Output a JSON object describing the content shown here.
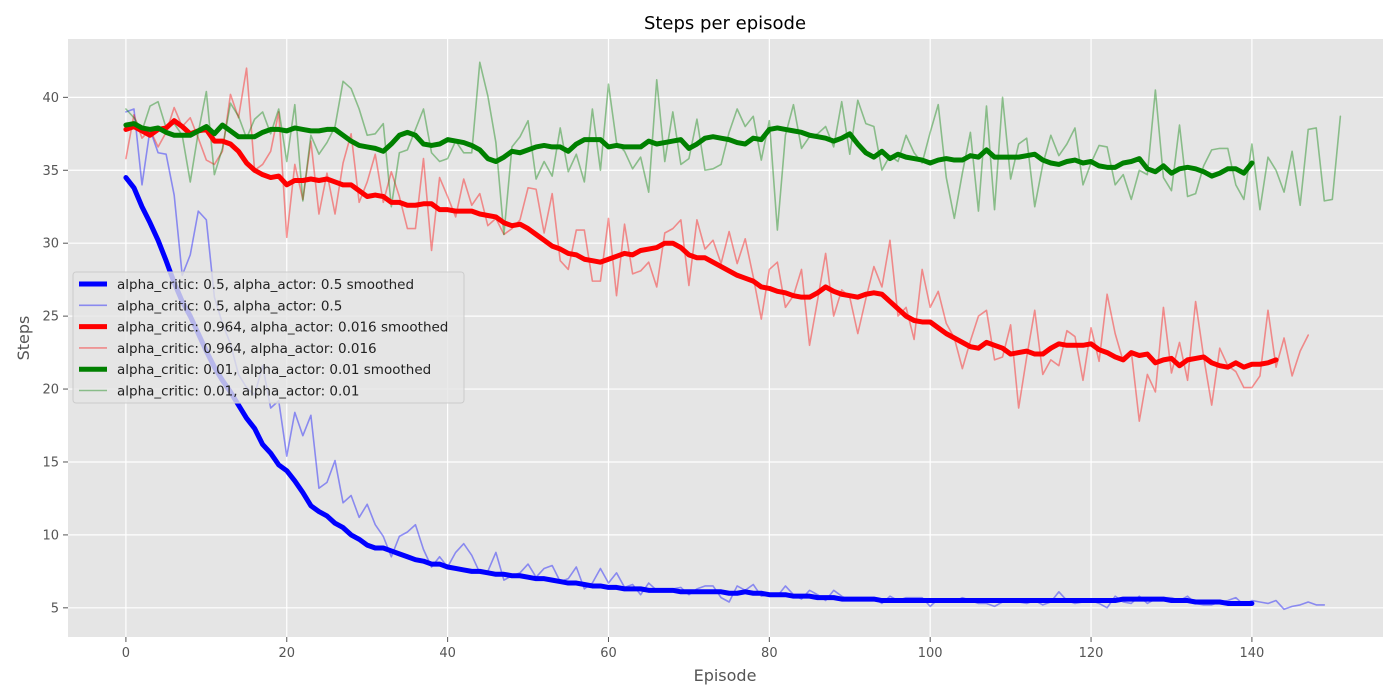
{
  "chart_data": {
    "type": "line",
    "title": "Steps per episode",
    "xlabel": "Episode",
    "ylabel": "Steps",
    "xlim": [
      -7.2,
      156.3
    ],
    "ylim": [
      3.0,
      44.0
    ],
    "xticks": [
      0,
      20,
      40,
      60,
      80,
      100,
      120,
      140
    ],
    "yticks": [
      5,
      10,
      15,
      20,
      25,
      30,
      35,
      40
    ],
    "grid": true,
    "legend_position": "center-left",
    "background": "#e5e5e5",
    "series": [
      {
        "name": "alpha_critic: 0.5, alpha_actor: 0.5 smoothed",
        "color": "#0000ff",
        "width": 5,
        "opacity": 1,
        "x_start": 0,
        "values": [
          34.5,
          33.8,
          32.5,
          31.4,
          30.2,
          28.8,
          27.3,
          26.0,
          25.0,
          23.8,
          22.6,
          21.5,
          20.6,
          19.8,
          18.9,
          18.0,
          17.3,
          16.2,
          15.6,
          14.8,
          14.4,
          13.7,
          12.9,
          12.0,
          11.6,
          11.3,
          10.8,
          10.5,
          10.0,
          9.7,
          9.3,
          9.1,
          9.1,
          8.9,
          8.7,
          8.5,
          8.3,
          8.2,
          8.0,
          8.0,
          7.8,
          7.7,
          7.6,
          7.5,
          7.5,
          7.4,
          7.3,
          7.3,
          7.2,
          7.2,
          7.1,
          7.0,
          7.0,
          6.9,
          6.8,
          6.7,
          6.7,
          6.6,
          6.5,
          6.5,
          6.4,
          6.4,
          6.3,
          6.3,
          6.3,
          6.2,
          6.2,
          6.2,
          6.2,
          6.1,
          6.1,
          6.1,
          6.1,
          6.1,
          6.1,
          6.0,
          6.0,
          6.1,
          6.0,
          6.0,
          5.9,
          5.9,
          5.9,
          5.8,
          5.8,
          5.8,
          5.7,
          5.7,
          5.7,
          5.6,
          5.6,
          5.6,
          5.6,
          5.6,
          5.5,
          5.5,
          5.5,
          5.5,
          5.5,
          5.5,
          5.5,
          5.5,
          5.5,
          5.5,
          5.5,
          5.5,
          5.5,
          5.5,
          5.5,
          5.5,
          5.5,
          5.5,
          5.5,
          5.5,
          5.5,
          5.5,
          5.5,
          5.5,
          5.5,
          5.5,
          5.5,
          5.5,
          5.5,
          5.5,
          5.6,
          5.6,
          5.6,
          5.6,
          5.6,
          5.6,
          5.5,
          5.5,
          5.5,
          5.4,
          5.4,
          5.4,
          5.4,
          5.3,
          5.3,
          5.3,
          5.3
        ]
      },
      {
        "name": "alpha_critic: 0.5, alpha_actor: 0.5",
        "color": "#0000ff",
        "width": 1.6,
        "opacity": 0.4,
        "x_start": 0,
        "values": [
          39.0,
          39.2,
          34.0,
          37.8,
          36.2,
          36.1,
          33.3,
          27.8,
          29.2,
          32.2,
          31.6,
          26.3,
          24.5,
          23.1,
          21.0,
          20.1,
          19.6,
          21.6,
          18.7,
          19.2,
          15.4,
          18.4,
          16.8,
          18.2,
          13.2,
          13.6,
          15.1,
          12.2,
          12.7,
          11.2,
          12.1,
          10.7,
          9.9,
          8.5,
          9.9,
          10.2,
          10.7,
          9.0,
          7.8,
          8.5,
          7.8,
          8.8,
          9.4,
          8.6,
          7.4,
          7.5,
          8.8,
          6.9,
          7.2,
          7.4,
          8.0,
          7.1,
          7.7,
          7.9,
          6.8,
          7.0,
          7.8,
          6.3,
          6.7,
          7.7,
          6.7,
          7.4,
          6.4,
          6.6,
          5.9,
          6.7,
          6.2,
          6.2,
          6.3,
          6.4,
          5.9,
          6.3,
          6.5,
          6.5,
          5.7,
          5.4,
          6.5,
          6.2,
          6.6,
          5.8,
          5.9,
          5.8,
          6.5,
          5.9,
          5.6,
          6.2,
          5.9,
          5.5,
          6.2,
          5.8,
          5.5,
          5.6,
          5.5,
          5.7,
          5.3,
          5.8,
          5.5,
          5.7,
          5.7,
          5.7,
          5.1,
          5.6,
          5.6,
          5.4,
          5.7,
          5.5,
          5.3,
          5.3,
          5.1,
          5.4,
          5.6,
          5.4,
          5.3,
          5.5,
          5.2,
          5.4,
          6.1,
          5.5,
          5.3,
          5.4,
          5.5,
          5.3,
          5.0,
          5.8,
          5.4,
          5.3,
          5.8,
          5.3,
          5.6,
          5.7,
          5.7,
          5.5,
          5.8,
          5.3,
          5.2,
          5.2,
          5.4,
          5.5,
          5.7,
          5.2,
          5.5,
          5.4,
          5.3,
          5.5,
          4.9,
          5.1,
          5.2,
          5.4,
          5.2,
          5.2
        ]
      },
      {
        "name": "alpha_critic: 0.964, alpha_actor: 0.016 smoothed",
        "color": "#ff0000",
        "width": 5,
        "opacity": 1,
        "x_start": 0,
        "values": [
          37.8,
          38.0,
          37.7,
          37.4,
          37.8,
          37.9,
          38.4,
          38.0,
          37.5,
          37.7,
          37.8,
          37.0,
          37.0,
          36.8,
          36.3,
          35.5,
          35.0,
          34.7,
          34.5,
          34.6,
          34.0,
          34.3,
          34.3,
          34.4,
          34.3,
          34.4,
          34.2,
          34.0,
          34.0,
          33.6,
          33.2,
          33.3,
          33.2,
          32.8,
          32.8,
          32.6,
          32.6,
          32.7,
          32.7,
          32.3,
          32.3,
          32.2,
          32.2,
          32.2,
          32.0,
          31.9,
          31.8,
          31.4,
          31.2,
          31.3,
          31.0,
          30.6,
          30.2,
          29.8,
          29.6,
          29.3,
          29.2,
          28.9,
          28.8,
          28.7,
          28.9,
          29.1,
          29.3,
          29.2,
          29.5,
          29.6,
          29.7,
          30.0,
          30.0,
          29.7,
          29.2,
          29.0,
          29.0,
          28.7,
          28.4,
          28.1,
          27.8,
          27.6,
          27.4,
          27.0,
          26.9,
          26.7,
          26.6,
          26.4,
          26.3,
          26.3,
          26.6,
          27.0,
          26.7,
          26.5,
          26.4,
          26.3,
          26.5,
          26.6,
          26.5,
          26.0,
          25.5,
          25.0,
          24.7,
          24.6,
          24.6,
          24.2,
          23.8,
          23.5,
          23.2,
          22.9,
          22.8,
          23.2,
          23.0,
          22.8,
          22.4,
          22.5,
          22.6,
          22.4,
          22.4,
          22.8,
          23.1,
          23.0,
          23.0,
          23.0,
          23.1,
          22.7,
          22.5,
          22.2,
          22.0,
          22.5,
          22.3,
          22.4,
          21.8,
          22.0,
          22.1,
          21.6,
          22.0,
          22.1,
          22.2,
          21.8,
          21.6,
          21.5,
          21.8,
          21.5,
          21.7,
          21.7,
          21.8,
          22.0
        ]
      },
      {
        "name": "alpha_critic: 0.964, alpha_actor: 0.016",
        "color": "#ff0000",
        "width": 1.6,
        "opacity": 0.4,
        "x_start": 0,
        "values": [
          35.8,
          38.8,
          37.2,
          37.8,
          36.6,
          37.6,
          39.3,
          38.0,
          38.6,
          37.2,
          35.7,
          35.4,
          36.3,
          40.2,
          38.6,
          42.0,
          35.0,
          35.4,
          36.3,
          39.0,
          30.4,
          35.4,
          33.0,
          37.0,
          32.0,
          34.8,
          32.0,
          35.5,
          37.5,
          32.8,
          34.2,
          36.1,
          32.8,
          34.9,
          33.2,
          31.0,
          31.0,
          35.8,
          29.5,
          34.5,
          33.2,
          31.8,
          34.4,
          32.6,
          33.4,
          31.2,
          31.7,
          30.6,
          31.0,
          31.6,
          33.8,
          33.7,
          30.7,
          33.4,
          28.8,
          28.2,
          30.9,
          30.9,
          27.4,
          27.4,
          31.7,
          26.4,
          31.3,
          27.9,
          28.1,
          28.7,
          27.0,
          30.7,
          31.0,
          31.6,
          27.1,
          31.6,
          29.6,
          30.2,
          28.6,
          30.8,
          28.6,
          30.3,
          27.7,
          24.8,
          28.2,
          28.7,
          25.6,
          26.4,
          28.2,
          23.0,
          26.1,
          29.3,
          25.0,
          26.8,
          26.3,
          23.8,
          26.2,
          28.4,
          27.0,
          30.2,
          25.0,
          25.6,
          23.4,
          28.2,
          25.6,
          26.7,
          24.5,
          23.5,
          21.4,
          23.3,
          25.0,
          25.4,
          22.0,
          22.2,
          24.4,
          18.7,
          22.2,
          25.4,
          21.0,
          22.0,
          21.6,
          24.0,
          23.6,
          20.6,
          24.2,
          21.9,
          26.5,
          23.8,
          21.9,
          22.6,
          17.8,
          21.0,
          19.8,
          25.6,
          21.1,
          23.2,
          20.6,
          26.0,
          22.2,
          18.9,
          22.8,
          21.6,
          21.2,
          20.1,
          20.1,
          20.9,
          25.4,
          21.5,
          23.5,
          20.9,
          22.6,
          23.7
        ]
      },
      {
        "name": "alpha_critic: 0.01, alpha_actor: 0.01 smoothed",
        "color": "#008000",
        "width": 5,
        "opacity": 1,
        "x_start": 0,
        "values": [
          38.1,
          38.2,
          37.9,
          37.8,
          37.9,
          37.6,
          37.4,
          37.4,
          37.4,
          37.7,
          38.0,
          37.5,
          38.1,
          37.7,
          37.3,
          37.3,
          37.3,
          37.6,
          37.8,
          37.8,
          37.7,
          37.9,
          37.8,
          37.7,
          37.7,
          37.8,
          37.8,
          37.4,
          37.0,
          36.7,
          36.6,
          36.5,
          36.3,
          36.8,
          37.4,
          37.6,
          37.4,
          36.8,
          36.7,
          36.8,
          37.1,
          37.0,
          36.9,
          36.7,
          36.4,
          35.8,
          35.6,
          35.9,
          36.3,
          36.2,
          36.4,
          36.6,
          36.7,
          36.6,
          36.6,
          36.3,
          36.8,
          37.1,
          37.1,
          37.1,
          36.6,
          36.7,
          36.6,
          36.6,
          36.6,
          37.0,
          36.8,
          36.9,
          37.0,
          37.1,
          36.5,
          36.8,
          37.2,
          37.3,
          37.2,
          37.1,
          36.9,
          36.8,
          37.2,
          37.1,
          37.8,
          37.9,
          37.8,
          37.7,
          37.6,
          37.4,
          37.3,
          37.2,
          37.0,
          37.2,
          37.5,
          36.8,
          36.2,
          35.9,
          36.3,
          35.8,
          36.1,
          35.9,
          35.8,
          35.7,
          35.5,
          35.7,
          35.8,
          35.7,
          35.7,
          36.0,
          35.9,
          36.4,
          35.9,
          35.9,
          35.9,
          35.9,
          36.0,
          36.1,
          35.7,
          35.5,
          35.4,
          35.6,
          35.7,
          35.5,
          35.6,
          35.3,
          35.2,
          35.2,
          35.5,
          35.6,
          35.8,
          35.1,
          34.9,
          35.3,
          34.8,
          35.1,
          35.2,
          35.1,
          34.9,
          34.6,
          34.8,
          35.1,
          35.1,
          34.8,
          35.5
        ]
      },
      {
        "name": "alpha_critic: 0.01, alpha_actor: 0.01",
        "color": "#008000",
        "width": 1.6,
        "opacity": 0.4,
        "x_start": 0,
        "values": [
          39.2,
          38.6,
          37.7,
          39.4,
          39.7,
          37.9,
          38.2,
          37.4,
          34.2,
          37.6,
          40.4,
          34.7,
          36.5,
          39.6,
          38.7,
          37.2,
          38.5,
          39.0,
          37.5,
          39.2,
          35.6,
          39.5,
          32.9,
          37.4,
          36.1,
          36.9,
          38.0,
          41.1,
          40.6,
          39.2,
          37.4,
          37.5,
          38.2,
          32.5,
          36.2,
          36.4,
          37.8,
          39.2,
          36.2,
          35.6,
          35.8,
          37.0,
          36.2,
          36.2,
          42.4,
          40.1,
          36.9,
          30.6,
          36.6,
          37.3,
          38.4,
          34.4,
          35.6,
          34.6,
          37.9,
          34.9,
          36.1,
          34.2,
          39.2,
          35.0,
          40.9,
          36.9,
          36.3,
          35.1,
          35.9,
          33.5,
          41.2,
          35.6,
          39.0,
          35.4,
          35.8,
          38.5,
          35.0,
          35.1,
          35.4,
          37.6,
          39.2,
          38.0,
          38.7,
          35.7,
          38.4,
          30.9,
          37.4,
          39.5,
          36.5,
          37.3,
          37.5,
          38.0,
          36.6,
          39.7,
          36.1,
          39.8,
          38.2,
          38.0,
          35.0,
          36.0,
          35.6,
          37.4,
          36.2,
          35.5,
          37.6,
          39.5,
          34.5,
          31.7,
          34.8,
          37.6,
          32.2,
          39.4,
          32.3,
          40.0,
          34.4,
          36.8,
          37.2,
          32.5,
          35.4,
          37.4,
          36.0,
          36.8,
          37.9,
          34.0,
          35.5,
          36.7,
          36.6,
          34.0,
          34.7,
          33.0,
          35.0,
          34.7,
          40.5,
          34.5,
          33.6,
          38.1,
          33.2,
          33.4,
          35.3,
          36.4,
          36.5,
          36.5,
          34.0,
          33.0,
          36.8,
          32.3,
          35.9,
          35.0,
          33.5,
          36.3,
          32.6,
          37.8,
          37.9,
          32.9,
          33.0,
          38.7
        ]
      }
    ]
  }
}
